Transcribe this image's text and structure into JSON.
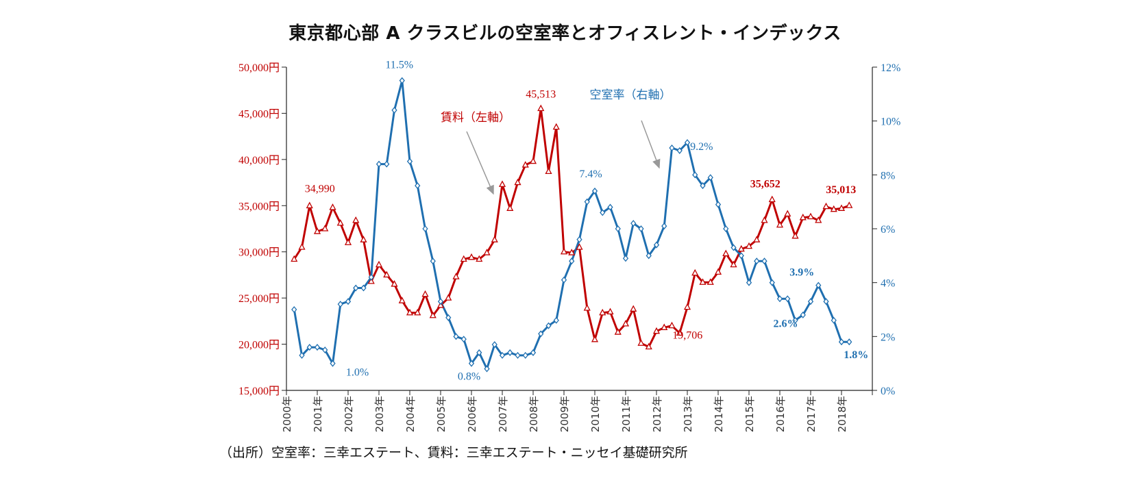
{
  "chart_data": {
    "type": "line",
    "title": "東京都心部 A クラスビルの空室率とオフィスレント・インデックス",
    "source": "（出所）空室率：三幸エステート、賃料：三幸エステート・ニッセイ基礎研究所",
    "x_labels": [
      "2000年",
      "2001年",
      "2002年",
      "2003年",
      "2004年",
      "2005年",
      "2006年",
      "2007年",
      "2008年",
      "2009年",
      "2010年",
      "2011年",
      "2012年",
      "2013年",
      "2014年",
      "2015年",
      "2016年",
      "2017年",
      "2018年"
    ],
    "x_range": [
      2000,
      2019
    ],
    "y_left": {
      "range": [
        15000,
        50000
      ],
      "ticks": [
        15000,
        20000,
        25000,
        30000,
        35000,
        40000,
        45000,
        50000
      ],
      "tick_labels": [
        "15,000円",
        "20,000円",
        "25,000円",
        "30,000円",
        "35,000円",
        "40,000円",
        "45,000円",
        "50,000円"
      ],
      "color": "#c00000"
    },
    "y_right": {
      "range": [
        0,
        12
      ],
      "ticks": [
        0,
        2,
        4,
        6,
        8,
        10,
        12
      ],
      "tick_labels": [
        "0%",
        "2%",
        "4%",
        "6%",
        "8%",
        "10%",
        "12%"
      ],
      "color": "#1f6fb0"
    },
    "series": [
      {
        "name": "賃料（左軸）",
        "axis": "left",
        "color": "#c00000",
        "marker": "triangle",
        "start": 2000.25,
        "step": 0.25,
        "values": [
          29200,
          30500,
          34990,
          32200,
          32500,
          34800,
          33100,
          31000,
          33400,
          31300,
          26800,
          28600,
          27500,
          26500,
          24700,
          23400,
          23400,
          25400,
          23100,
          24200,
          25000,
          27300,
          29200,
          29400,
          29200,
          29900,
          31300,
          37300,
          34700,
          37500,
          39400,
          39800,
          45513,
          38700,
          43500,
          30000,
          29900,
          30500,
          23900,
          20500,
          23400,
          23500,
          21300,
          22200,
          23800,
          20100,
          19706,
          21400,
          21800,
          22000,
          21200,
          24000,
          27700,
          26700,
          26700,
          27800,
          29800,
          28600,
          30300,
          30600,
          31300,
          33400,
          35652,
          32900,
          34100,
          31700,
          33700,
          33800,
          33400,
          34900,
          34600,
          34700,
          35013
        ]
      },
      {
        "name": "空室率（右軸）",
        "axis": "right",
        "color": "#1f6fb0",
        "marker": "diamond",
        "start": 2000.25,
        "step": 0.25,
        "values": [
          3.0,
          1.3,
          1.6,
          1.6,
          1.5,
          1.0,
          3.2,
          3.3,
          3.8,
          3.8,
          4.2,
          8.4,
          8.4,
          10.4,
          11.5,
          8.5,
          7.6,
          6.0,
          4.8,
          3.3,
          2.7,
          2.0,
          1.9,
          1.0,
          1.4,
          0.8,
          1.7,
          1.3,
          1.4,
          1.3,
          1.3,
          1.4,
          2.1,
          2.4,
          2.6,
          4.1,
          4.8,
          5.6,
          7.0,
          7.4,
          6.6,
          6.8,
          6.0,
          4.9,
          6.2,
          6.0,
          5.0,
          5.4,
          6.1,
          9.0,
          8.9,
          9.2,
          8.0,
          7.6,
          7.9,
          6.9,
          6.0,
          5.3,
          5.0,
          4.0,
          4.8,
          4.8,
          4.0,
          3.4,
          3.4,
          2.6,
          2.8,
          3.3,
          3.9,
          3.3,
          2.6,
          1.8,
          1.8
        ]
      }
    ],
    "annotations": [
      {
        "text": "34,990",
        "series": "賃料（左軸）",
        "x": 2000.75,
        "bold": false
      },
      {
        "text": "45,513",
        "series": "賃料（左軸）",
        "x": 2008.25,
        "bold": false
      },
      {
        "text": "19,706",
        "series": "賃料（左軸）",
        "x": 2012.25,
        "bold": false
      },
      {
        "text": "35,652",
        "series": "賃料（左軸）",
        "x": 2015.75,
        "bold": true
      },
      {
        "text": "35,013",
        "series": "賃料（左軸）",
        "x": 2018.25,
        "bold": true
      },
      {
        "text": "11.5%",
        "series": "空室率（右軸）",
        "x": 2003.75,
        "bold": false
      },
      {
        "text": "1.0%",
        "series": "空室率（右軸）",
        "x": 2001.5,
        "bold": false
      },
      {
        "text": "0.8%",
        "series": "空室率（右軸）",
        "x": 2006.5,
        "bold": false
      },
      {
        "text": "7.4%",
        "series": "空室率（右軸）",
        "x": 2010,
        "bold": false
      },
      {
        "text": "9.2%",
        "series": "空室率（右軸）",
        "x": 2012.75,
        "bold": false
      },
      {
        "text": "2.6%",
        "series": "空室率（右軸）",
        "x": 2016.5,
        "bold": true
      },
      {
        "text": "3.9%",
        "series": "空室率（右軸）",
        "x": 2017.25,
        "bold": true
      },
      {
        "text": "1.8%",
        "series": "空室率（右軸）",
        "x": 2018.25,
        "bold": true
      }
    ],
    "series_labels": [
      {
        "text": "賃料（左軸）",
        "color": "#c00000"
      },
      {
        "text": "空室率（右軸）",
        "color": "#1f6fb0"
      }
    ]
  }
}
